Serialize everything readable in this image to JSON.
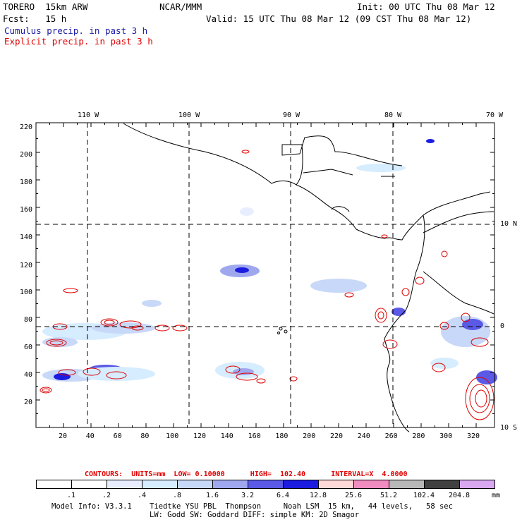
{
  "header": {
    "model": "TORERO  15km ARW",
    "center": "NCAR/MMM",
    "init": "Init: 00 UTC Thu 08 Mar 12",
    "fcst": "Fcst:   15 h",
    "valid": "Valid: 15 UTC Thu 08 Mar 12 (09 CST Thu 08 Mar 12)",
    "field1": "Cumulus precip. in past 3 h",
    "field2": "Explicit precip. in past 3 h",
    "field1_color": "#1a1aa6",
    "field2_color": "#e00000"
  },
  "map": {
    "top_lon_labels": [
      "110 W",
      "100 W",
      "90 W",
      "80 W",
      "70 W"
    ],
    "right_lat_labels": [
      "10 N",
      "0",
      "10 S"
    ],
    "left_y_ticks": [
      "220",
      "200",
      "180",
      "160",
      "140",
      "120",
      "100",
      "80",
      "60",
      "40",
      "20"
    ],
    "bottom_x_ticks": [
      "20",
      "40",
      "60",
      "80",
      "100",
      "120",
      "140",
      "160",
      "180",
      "200",
      "220",
      "240",
      "260",
      "280",
      "300",
      "320"
    ],
    "grid": "dashed"
  },
  "legend": {
    "contours_line": "CONTOURS:  UNITS=mm  LOW= 0.10000      HIGH=  102.40      INTERVAL=X  4.0000",
    "units": "mm",
    "labels": [
      ".1",
      ".2",
      ".4",
      ".8",
      "1.6",
      "3.2",
      "6.4",
      "12.8",
      "25.6",
      "51.2",
      "102.4",
      "204.8"
    ],
    "colors": [
      "#ffffff",
      "#ffffff",
      "#e8eeff",
      "#d6ecff",
      "#c8d8f8",
      "#9fa8ee",
      "#5a5ae6",
      "#1c1ce0",
      "#ffd8d8",
      "#f08cbf",
      "#b8b8b8",
      "#404040",
      "#d9a8f0"
    ]
  },
  "footer": {
    "line1": "Model Info: V3.3.1    Tiedtke YSU PBL  Thompson     Noah LSM  15 km,   44 levels,   58 sec",
    "line2": "LW: Godd SW: Goddard DIFF: simple KM: 2D Smagor"
  }
}
